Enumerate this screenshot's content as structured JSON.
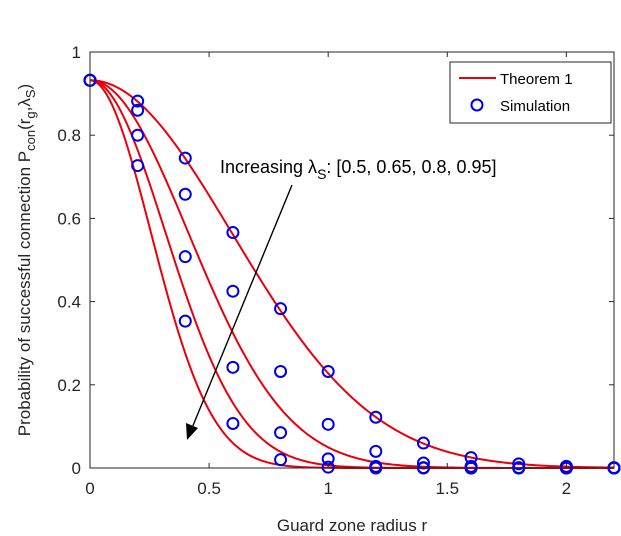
{
  "chart_data": {
    "type": "line",
    "xlabel": "Guard zone radius r",
    "ylabel": "Probability of successful connection P",
    "ylabel_sub": "con",
    "ylabel_args_open": "(r",
    "ylabel_arg_sub": "g",
    "ylabel_args_mid": ",λ",
    "ylabel_arg2_sub": "S",
    "ylabel_args_close": ")",
    "xlim": [
      0,
      2.2
    ],
    "ylim": [
      0,
      1
    ],
    "xticks": [
      0,
      0.5,
      1,
      1.5,
      2
    ],
    "xtick_labels": [
      "0",
      "0.5",
      "1",
      "1.5",
      "2"
    ],
    "yticks": [
      0,
      0.2,
      0.4,
      0.6,
      0.8,
      1
    ],
    "ytick_labels": [
      "0",
      "0.2",
      "0.4",
      "0.6",
      "0.8",
      "1"
    ],
    "grid": false,
    "legend_position": "top-right",
    "legend": {
      "theorem_label": "Theorem 1",
      "simulation_label": "Simulation"
    },
    "annotation": {
      "prefix": "Increasing λ",
      "sub": "S",
      "suffix": ": [0.5, 0.65, 0.8, 0.95]"
    },
    "line_color": "#e8000b",
    "marker_color": "#0000e6",
    "lambda_values": [
      0.5,
      0.65,
      0.8,
      0.95
    ],
    "theorem_curves": {
      "p0": 0.932,
      "description_values": "P(r) = p0 * exp(-k * r^2) for each lambda",
      "k": [
        1.41,
        2.93,
        4.96,
        7.62
      ]
    },
    "simulation_series": [
      {
        "lambda": 0.5,
        "x": [
          0,
          0.2,
          0.4,
          0.6,
          0.8,
          1.0,
          1.2,
          1.4,
          1.6,
          1.8,
          2.0,
          2.2
        ],
        "y": [
          0.932,
          0.882,
          0.745,
          0.566,
          0.383,
          0.232,
          0.122,
          0.06,
          0.025,
          0.01,
          0.004,
          0.001
        ]
      },
      {
        "lambda": 0.65,
        "x": [
          0,
          0.2,
          0.4,
          0.6,
          0.8,
          1.0,
          1.2,
          1.4,
          1.6,
          1.8,
          2.0,
          2.2
        ],
        "y": [
          0.932,
          0.86,
          0.658,
          0.425,
          0.232,
          0.105,
          0.04,
          0.012,
          0.004,
          0.001,
          0.0,
          0.0
        ]
      },
      {
        "lambda": 0.8,
        "x": [
          0,
          0.2,
          0.4,
          0.6,
          0.8,
          1.0,
          1.2,
          1.4,
          1.6,
          1.8,
          2.0,
          2.2
        ],
        "y": [
          0.932,
          0.8,
          0.508,
          0.242,
          0.085,
          0.022,
          0.004,
          0.001,
          0.0,
          0.0,
          0.0,
          0.0
        ]
      },
      {
        "lambda": 0.95,
        "x": [
          0,
          0.2,
          0.4,
          0.6,
          0.8,
          1.0,
          1.2,
          1.4,
          1.6,
          1.8,
          2.0,
          2.2
        ],
        "y": [
          0.932,
          0.727,
          0.353,
          0.107,
          0.02,
          0.002,
          0.0,
          0.0,
          0.0,
          0.0,
          0.0,
          0.0
        ]
      }
    ]
  }
}
